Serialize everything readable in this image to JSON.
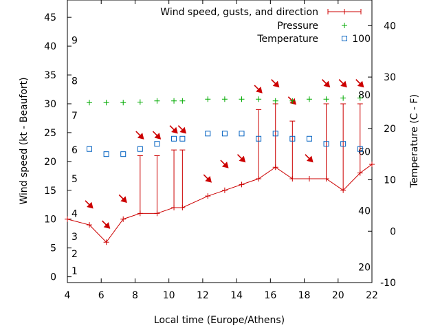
{
  "chart_data": {
    "type": "line",
    "xlabel": "Local time (Europe/Athens)",
    "ylabel": "Wind speed (kt - Beaufort)",
    "y2label": "Temperature (C - F)",
    "xlim": [
      4,
      22
    ],
    "ylim": [
      -1,
      48
    ],
    "y2lim": [
      -10,
      45
    ],
    "xticks": [
      "4",
      "6",
      "8",
      "10",
      "12",
      "14",
      "16",
      "18",
      "20",
      "22"
    ],
    "yticks": [
      "0",
      "5",
      "10",
      "15",
      "20",
      "25",
      "30",
      "35",
      "40",
      "45"
    ],
    "y2ticks": [
      "-10",
      "0",
      "10",
      "20",
      "30",
      "40"
    ],
    "beaufort_labels": [
      {
        "label": "1",
        "y": 1
      },
      {
        "label": "2",
        "y": 4
      },
      {
        "label": "3",
        "y": 7
      },
      {
        "label": "4",
        "y": 11
      },
      {
        "label": "5",
        "y": 17
      },
      {
        "label": "6",
        "y": 22
      },
      {
        "label": "7",
        "y": 28
      },
      {
        "label": "8",
        "y": 34
      },
      {
        "label": "9",
        "y": 41
      }
    ],
    "fahrenheit_labels": [
      {
        "label": "20",
        "t": -7
      },
      {
        "label": "40",
        "t": 4
      },
      {
        "label": "60",
        "t": 15.5
      },
      {
        "label": "80",
        "t": 26.5
      },
      {
        "label": "100",
        "t": 37.5
      }
    ],
    "legend": {
      "position": "top-right",
      "entries": [
        "Wind speed, gusts, and direction",
        "Pressure",
        "Temperature"
      ]
    },
    "series": [
      {
        "name": "Wind speed, gusts, and direction",
        "color": "#cc0000",
        "x": [
          4.0,
          5.3,
          6.3,
          7.3,
          8.3,
          9.3,
          10.3,
          10.8,
          12.3,
          13.3,
          14.3,
          15.3,
          16.3,
          17.3,
          18.3,
          19.3,
          20.3,
          21.3,
          22.0
        ],
        "y": [
          10,
          9,
          6,
          10,
          11,
          11,
          12,
          12,
          14,
          15,
          16,
          17,
          19,
          17,
          17,
          17,
          15,
          18,
          19.5
        ],
        "gusts": [
          null,
          null,
          null,
          null,
          21,
          21,
          22,
          22,
          null,
          null,
          null,
          29,
          30,
          27,
          null,
          30,
          30,
          30,
          null
        ],
        "direction_arrow_y": [
          null,
          12.5,
          9,
          13.5,
          24.5,
          24.5,
          25.5,
          25.5,
          17,
          19.5,
          20.5,
          32.5,
          33.5,
          30.5,
          20.5,
          33.5,
          33.5,
          33.5,
          null
        ]
      },
      {
        "name": "Pressure",
        "color": "#00aa00",
        "x": [
          5.3,
          6.3,
          7.3,
          8.3,
          9.3,
          10.3,
          10.8,
          12.3,
          13.3,
          14.3,
          15.3,
          16.3,
          17.3,
          18.3,
          19.3,
          20.3,
          21.3
        ],
        "y": [
          30.2,
          30.2,
          30.2,
          30.3,
          30.5,
          30.5,
          30.5,
          30.8,
          30.8,
          30.8,
          30.8,
          30.5,
          30.5,
          30.8,
          30.8,
          31.0,
          31.0
        ]
      },
      {
        "name": "Temperature",
        "color": "#0060c0",
        "x": [
          5.3,
          6.3,
          7.3,
          8.3,
          9.3,
          10.3,
          10.8,
          12.3,
          13.3,
          14.3,
          15.3,
          16.3,
          17.3,
          18.3,
          19.3,
          20.3,
          21.3
        ],
        "y": [
          16,
          15,
          15,
          16,
          17,
          18,
          18,
          19,
          19,
          19,
          18,
          19,
          18,
          18,
          17,
          17,
          16
        ]
      }
    ]
  }
}
